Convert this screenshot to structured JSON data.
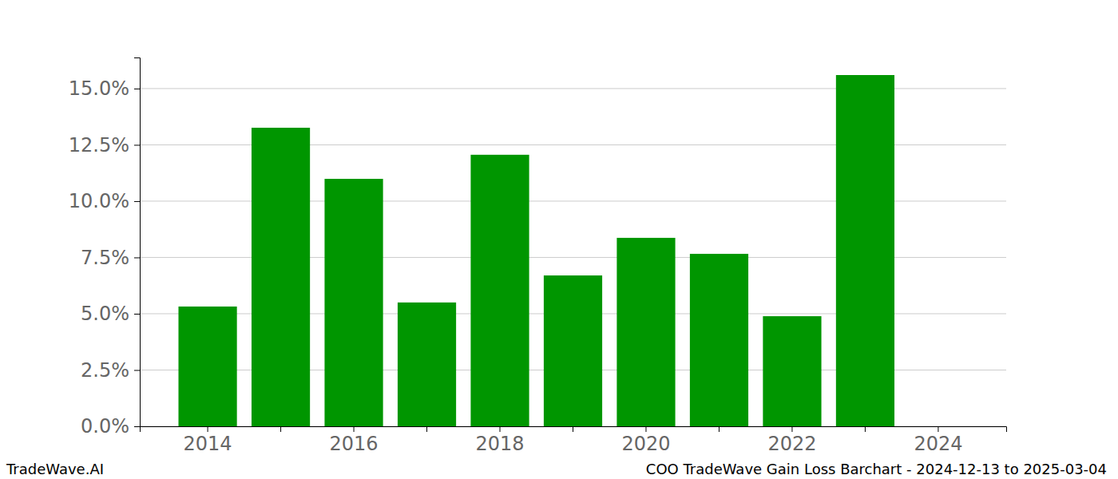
{
  "chart_data": {
    "type": "bar",
    "categories": [
      "2014",
      null,
      "2016",
      null,
      "2018",
      null,
      "2020",
      null,
      "2022",
      null,
      "2024"
    ],
    "values": [
      5.32,
      13.26,
      10.99,
      5.5,
      12.06,
      6.7,
      8.37,
      7.66,
      4.89,
      15.6,
      null
    ],
    "color": "#009600",
    "ylim": [
      0,
      16.38
    ],
    "yticks": [
      {
        "value": 0,
        "label": "0.0%"
      },
      {
        "value": 2.5,
        "label": "2.5%"
      },
      {
        "value": 5,
        "label": "5.0%"
      },
      {
        "value": 7.5,
        "label": "7.5%"
      },
      {
        "value": 10,
        "label": "10.0%"
      },
      {
        "value": 12.5,
        "label": "12.5%"
      },
      {
        "value": 15,
        "label": "15.0%"
      }
    ],
    "grid": true,
    "annotations": [
      "TradeWave.AI",
      "COO TradeWave Gain Loss Barchart - 2024-12-13 to 2025-03-04"
    ]
  }
}
